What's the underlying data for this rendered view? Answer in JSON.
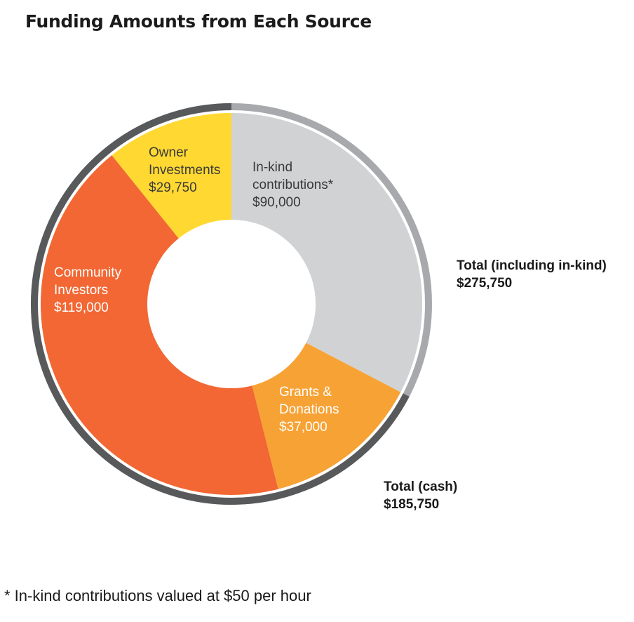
{
  "title": "Funding Amounts from Each Source",
  "footnote": "* In-kind contributions valued at $50 per hour",
  "totals": {
    "all": {
      "label": "Total (including in-kind)",
      "value": "$275,750"
    },
    "cash": {
      "label": "Total (cash)",
      "value": "$185,750"
    }
  },
  "chart_data": {
    "type": "pie",
    "title": "Funding Amounts from Each Source",
    "slices": [
      {
        "label": [
          "In-kind",
          "contributions*"
        ],
        "value": 90000,
        "display": "$90,000",
        "color": "#d1d2d4",
        "text_color": "#3a3a3a"
      },
      {
        "label": [
          "Grants &",
          "Donations"
        ],
        "value": 37000,
        "display": "$37,000",
        "color": "#f7a234",
        "text_color": "#ffffff"
      },
      {
        "label": [
          "Community",
          "Investors"
        ],
        "value": 119000,
        "display": "$119,000",
        "color": "#f26733",
        "text_color": "#ffffff"
      },
      {
        "label": [
          "Owner",
          "Investments"
        ],
        "value": 29750,
        "display": "$29,750",
        "color": "#ffd832",
        "text_color": "#3a3a3a"
      }
    ],
    "ring_colors": {
      "total": "#a7a9ac",
      "cash": "#58595b"
    }
  }
}
